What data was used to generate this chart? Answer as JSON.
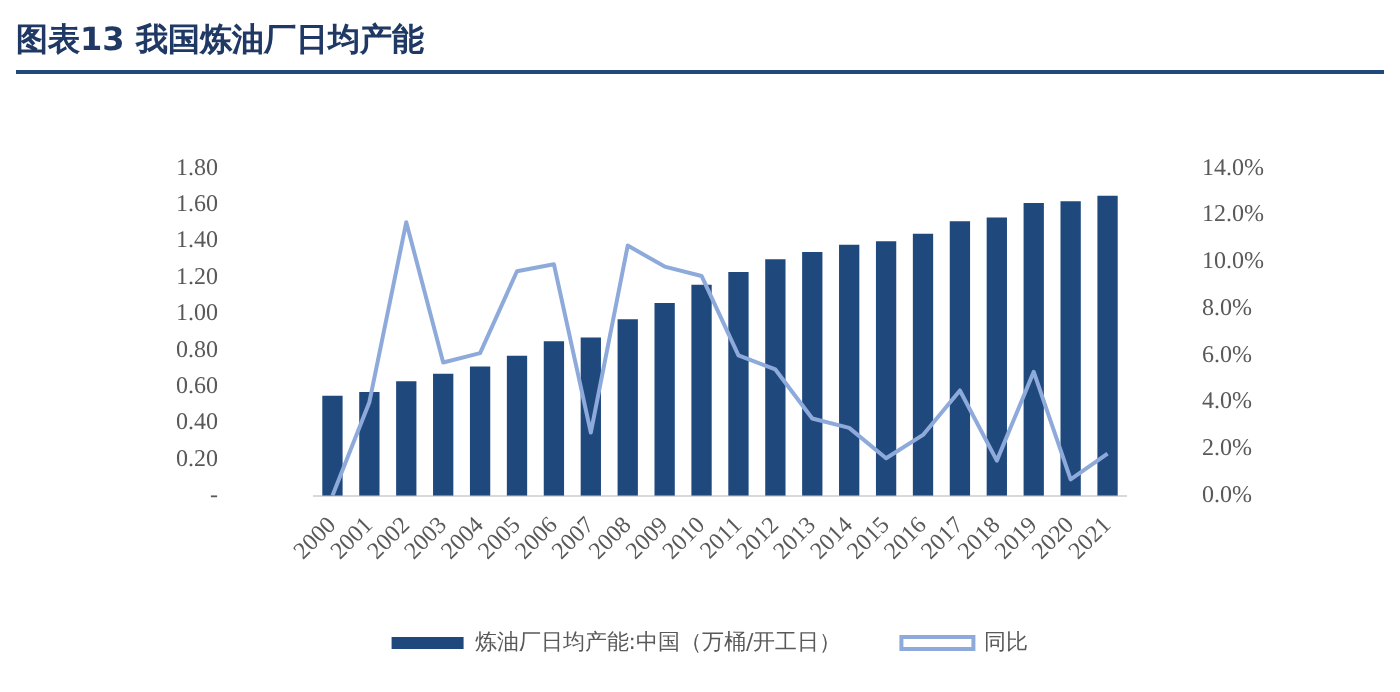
{
  "chart_data": {
    "type": "bar",
    "title": "图表13 我国炼油厂日均产能",
    "categories": [
      "2000",
      "2001",
      "2002",
      "2003",
      "2004",
      "2005",
      "2006",
      "2007",
      "2008",
      "2009",
      "2010",
      "2011",
      "2012",
      "2013",
      "2014",
      "2015",
      "2016",
      "2017",
      "2018",
      "2019",
      "2020",
      "2021"
    ],
    "series": [
      {
        "name": "炼油厂日均产能:中国（万桶/开工日）",
        "color": "#1f497d",
        "values": [
          0.55,
          0.57,
          0.63,
          0.67,
          0.71,
          0.77,
          0.85,
          0.87,
          0.97,
          1.06,
          1.16,
          1.23,
          1.3,
          1.34,
          1.38,
          1.4,
          1.44,
          1.51,
          1.53,
          1.61,
          1.62,
          1.65
        ]
      },
      {
        "name": "同比",
        "type": "line",
        "axis": "y2",
        "color": "#8eaadb",
        "values": [
          0.0,
          4.0,
          11.7,
          5.7,
          6.1,
          9.6,
          9.9,
          2.7,
          10.7,
          9.8,
          9.4,
          6.0,
          5.4,
          3.3,
          2.9,
          1.6,
          2.6,
          4.5,
          1.5,
          5.3,
          0.7,
          1.8
        ]
      }
    ],
    "ylim": [
      0,
      1.8
    ],
    "yticks": [
      {
        "value": 0,
        "label": "-"
      },
      {
        "value": 0.2,
        "label": "0.20"
      },
      {
        "value": 0.4,
        "label": "0.40"
      },
      {
        "value": 0.6,
        "label": "0.60"
      },
      {
        "value": 0.8,
        "label": "0.80"
      },
      {
        "value": 1.0,
        "label": "1.00"
      },
      {
        "value": 1.2,
        "label": "1.20"
      },
      {
        "value": 1.4,
        "label": "1.40"
      },
      {
        "value": 1.6,
        "label": "1.60"
      },
      {
        "value": 1.8,
        "label": "1.80"
      }
    ],
    "y2lim": [
      0,
      14
    ],
    "y2ticks": [
      {
        "value": 0,
        "label": "0.0%"
      },
      {
        "value": 2,
        "label": "2.0%"
      },
      {
        "value": 4,
        "label": "4.0%"
      },
      {
        "value": 6,
        "label": "6.0%"
      },
      {
        "value": 8,
        "label": "8.0%"
      },
      {
        "value": 10,
        "label": "10.0%"
      },
      {
        "value": 12,
        "label": "12.0%"
      },
      {
        "value": 14,
        "label": "14.0%"
      }
    ],
    "grid": false,
    "legend": "bottom",
    "marker": "none",
    "line_style": "solid"
  }
}
